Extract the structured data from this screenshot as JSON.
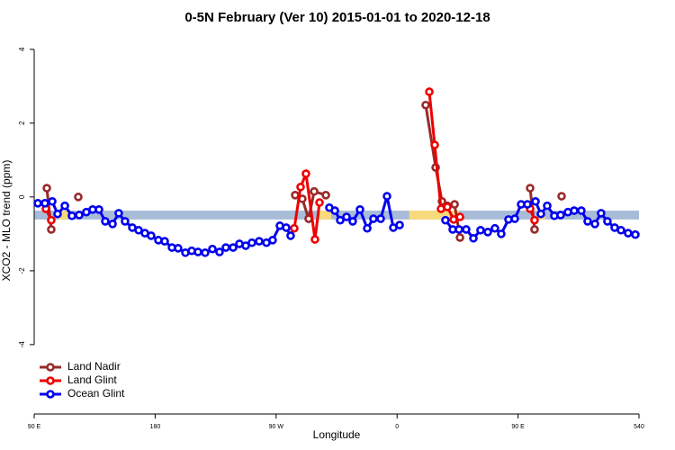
{
  "chart_data": {
    "type": "line",
    "title": "0-5N February (Ver 10)   2015-01-01 to 2020-12-18",
    "x_label": "Longitude",
    "y_label": "XCO2 - MLO trend (ppm)",
    "xlim": [
      90,
      540
    ],
    "ylim": [
      -5.88,
      4.41
    ],
    "xticks": [
      {
        "value": 90,
        "label": "90 E"
      },
      180,
      {
        "value": 270,
        "label": "90 W"
      },
      {
        "value": 360,
        "label": "0"
      },
      {
        "value": 450,
        "label": "90 E"
      },
      540
    ],
    "yticks": [
      -4,
      -2,
      0,
      2,
      4
    ],
    "legend": "bottom-left",
    "band": {
      "ymin": -0.61,
      "ymax": -0.37,
      "color": "#a8bcd8",
      "highlight_color": "#f8d97c",
      "highlights": [
        [
          108,
          115
        ],
        [
          302,
          311
        ],
        [
          369,
          406
        ],
        [
          464,
          470
        ]
      ]
    },
    "series": [
      {
        "name": "Land Nadir",
        "color": "#9a2a2a",
        "x": [
          99.4,
          102.7,
          null,
          122.8,
          null,
          284.2,
          289.5,
          294.2,
          298.3,
          307.0,
          null,
          381.3,
          388.7,
          393.4,
          397.4,
          402.8,
          406.8,
          null,
          459.0,
          462.3,
          null,
          482.4
        ],
        "values": [
          0.24,
          -0.88,
          null,
          0.0,
          null,
          0.05,
          -0.05,
          -0.59,
          0.15,
          0.05,
          null,
          2.49,
          0.8,
          -0.12,
          -0.24,
          -0.2,
          -1.1,
          null,
          0.24,
          -0.88,
          null,
          0.02
        ]
      },
      {
        "name": "Land Glint",
        "color": "#ee0000",
        "x": [
          98.7,
          102.7,
          null,
          283.5,
          288.2,
          292.2,
          298.9,
          302.3,
          null,
          384.0,
          388.0,
          392.7,
          397.4,
          402.1,
          406.8,
          null,
          459.0,
          462.3
        ],
        "values": [
          -0.32,
          -0.63,
          null,
          -0.85,
          0.27,
          0.63,
          -1.15,
          -0.15,
          null,
          2.85,
          1.41,
          -0.32,
          -0.27,
          -0.61,
          -0.54,
          null,
          -0.32,
          -0.63
        ]
      },
      {
        "name": "Ocean Glint",
        "color": "#0000ee",
        "x": [
          92.7,
          98.0,
          103.4,
          107.4,
          112.8,
          118.1,
          123.5,
          128.8,
          133.5,
          138.2,
          142.9,
          148.3,
          152.9,
          157.6,
          163.0,
          167.7,
          172.4,
          177.0,
          182.4,
          187.1,
          192.5,
          197.1,
          202.5,
          207.2,
          211.9,
          217.2,
          222.6,
          227.9,
          232.6,
          238.0,
          242.7,
          247.4,
          252.0,
          257.4,
          262.8,
          267.4,
          272.8,
          277.5,
          280.8,
          null,
          309.6,
          313.7,
          317.7,
          322.4,
          327.0,
          332.4,
          337.8,
          342.4,
          347.8,
          352.5,
          357.2,
          361.9,
          null,
          396.0,
          401.4,
          406.1,
          411.4,
          416.8,
          422.1,
          427.5,
          432.8,
          437.5,
          442.9,
          447.6,
          452.3,
          457.0,
          463.0,
          467.0,
          471.7,
          477.0,
          481.7,
          487.1,
          491.8,
          497.1,
          501.8,
          507.2,
          511.8,
          516.5,
          521.9,
          526.6,
          531.9,
          537.3
        ],
        "values": [
          -0.17,
          -0.17,
          -0.12,
          -0.46,
          -0.24,
          -0.51,
          -0.49,
          -0.41,
          -0.34,
          -0.34,
          -0.66,
          -0.73,
          -0.44,
          -0.66,
          -0.83,
          -0.9,
          -0.98,
          -1.05,
          -1.17,
          -1.2,
          -1.37,
          -1.39,
          -1.51,
          -1.46,
          -1.49,
          -1.51,
          -1.41,
          -1.49,
          -1.37,
          -1.37,
          -1.27,
          -1.32,
          -1.24,
          -1.2,
          -1.24,
          -1.17,
          -0.78,
          -0.83,
          -1.05,
          null,
          -0.29,
          -0.37,
          -0.63,
          -0.54,
          -0.66,
          -0.34,
          -0.85,
          -0.59,
          -0.59,
          0.02,
          -0.83,
          -0.76,
          null,
          -0.63,
          -0.88,
          -0.88,
          -0.88,
          -1.12,
          -0.9,
          -0.95,
          -0.85,
          -1.0,
          -0.61,
          -0.59,
          -0.2,
          -0.2,
          -0.12,
          -0.46,
          -0.24,
          -0.51,
          -0.49,
          -0.41,
          -0.37,
          -0.37,
          -0.66,
          -0.73,
          -0.44,
          -0.66,
          -0.83,
          -0.9,
          -0.98,
          -1.02
        ]
      }
    ]
  }
}
